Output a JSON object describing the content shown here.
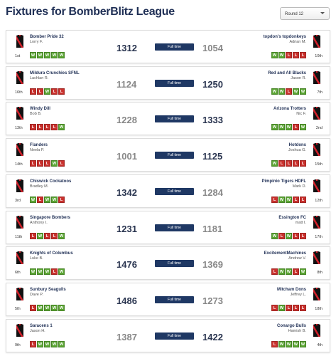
{
  "header": {
    "title": "Fixtures for BomberBlitz League",
    "round_select": "Round 12"
  },
  "status_label": "Full time",
  "fixtures": [
    {
      "home": {
        "team": "Bomber Pride 32",
        "coach": "Lorry F.",
        "rank": "1st",
        "form": [
          "W",
          "W",
          "W",
          "W",
          "W"
        ],
        "score": 1312
      },
      "away": {
        "team": "topdon's topdonkeys",
        "coach": "Adrian M.",
        "rank": "10th",
        "form": [
          "W",
          "W",
          "L",
          "L",
          "L"
        ],
        "score": 1054
      }
    },
    {
      "home": {
        "team": "Mildura Crunchies SFNL",
        "coach": "Lachlan R.",
        "rank": "16th",
        "form": [
          "L",
          "L",
          "W",
          "L",
          "L"
        ],
        "score": 1124
      },
      "away": {
        "team": "Red and All Blacks",
        "coach": "Jason R.",
        "rank": "7th",
        "form": [
          "W",
          "W",
          "L",
          "W",
          "W"
        ],
        "score": 1250
      }
    },
    {
      "home": {
        "team": "Windy Dill",
        "coach": "Bob B.",
        "rank": "13th",
        "form": [
          "L",
          "L",
          "L",
          "L",
          "W"
        ],
        "score": 1228
      },
      "away": {
        "team": "Arizona Trotters",
        "coach": "Nic F.",
        "rank": "2nd",
        "form": [
          "W",
          "W",
          "W",
          "L",
          "W"
        ],
        "score": 1333
      }
    },
    {
      "home": {
        "team": "Flanders",
        "coach": "Neela P.",
        "rank": "14th",
        "form": [
          "L",
          "L",
          "L",
          "W",
          "L"
        ],
        "score": 1001
      },
      "away": {
        "team": "Hotdons",
        "coach": "Joshua G.",
        "rank": "15th",
        "form": [
          "W",
          "L",
          "L",
          "L",
          "L"
        ],
        "score": 1125
      }
    },
    {
      "home": {
        "team": "Chiswick Cockatoos",
        "coach": "Bradley M.",
        "rank": "3rd",
        "form": [
          "W",
          "L",
          "W",
          "W",
          "L"
        ],
        "score": 1342
      },
      "away": {
        "team": "Pimpinio Tigers HDFL",
        "coach": "Mark D.",
        "rank": "12th",
        "form": [
          "L",
          "W",
          "W",
          "L",
          "L"
        ],
        "score": 1284
      }
    },
    {
      "home": {
        "team": "Singapore Bombers",
        "coach": "Anthony I.",
        "rank": "11th",
        "form": [
          "L",
          "W",
          "L",
          "L",
          "W"
        ],
        "score": 1231
      },
      "away": {
        "team": "Essington FC",
        "coach": "matt I.",
        "rank": "17th",
        "form": [
          "W",
          "L",
          "W",
          "L",
          "L"
        ],
        "score": 1181
      }
    },
    {
      "home": {
        "team": "Knights of Columbus",
        "coach": "Luke B.",
        "rank": "6th",
        "form": [
          "W",
          "W",
          "W",
          "L",
          "W"
        ],
        "score": 1476
      },
      "away": {
        "team": "ExcitementMachines",
        "coach": "Andrew V.",
        "rank": "8th",
        "form": [
          "L",
          "W",
          "W",
          "L",
          "W"
        ],
        "score": 1369
      }
    },
    {
      "home": {
        "team": "Sunbury Seagulls",
        "coach": "Dave P.",
        "rank": "5th",
        "form": [
          "L",
          "W",
          "W",
          "W",
          "W"
        ],
        "score": 1486
      },
      "away": {
        "team": "Mitcham Dons",
        "coach": "Jeffrey L.",
        "rank": "18th",
        "form": [
          "L",
          "W",
          "L",
          "L",
          "L"
        ],
        "score": 1273
      }
    },
    {
      "home": {
        "team": "Saracens 1",
        "coach": "Jason H.",
        "rank": "9th",
        "form": [
          "L",
          "W",
          "W",
          "W",
          "W"
        ],
        "score": 1387
      },
      "away": {
        "team": "Conargo Bulls",
        "coach": "Hamish B.",
        "rank": "4th",
        "form": [
          "L",
          "W",
          "W",
          "W",
          "W"
        ],
        "score": 1422
      }
    }
  ]
}
